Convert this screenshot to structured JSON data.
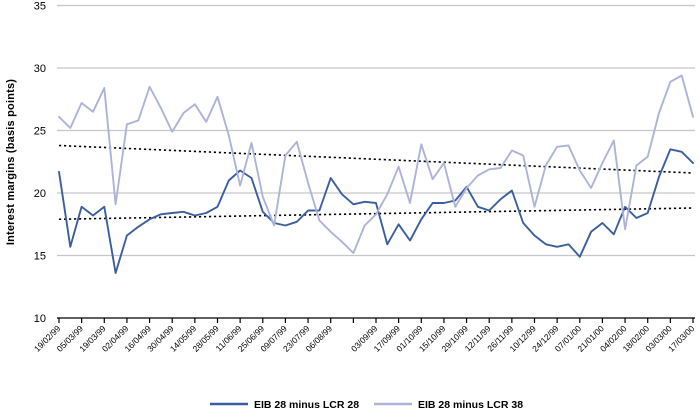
{
  "chart_data": {
    "type": "line",
    "title": "",
    "xlabel": "",
    "ylabel": "Interest margins (basis points)",
    "ylim": [
      10,
      35
    ],
    "yticks": [
      10,
      15,
      20,
      25,
      30,
      35
    ],
    "grid": "horizontal",
    "legend_position": "bottom",
    "x_frequency": "weekly points, biweekly date ticks",
    "x_tick_labels": [
      "19/02/99",
      "05/03/99",
      "19/03/99",
      "02/04/99",
      "16/04/99",
      "30/04/99",
      "14/05/99",
      "28/05/99",
      "11/06/99",
      "25/06/99",
      "09/07/99",
      "23/07/99",
      "06/08/99",
      "",
      "03/09/99",
      "17/09/99",
      "01/10/99",
      "15/10/99",
      "29/10/99",
      "12/11/99",
      "26/11/99",
      "10/12/99",
      "24/12/99",
      "07/01/00",
      "21/01/00",
      "04/02/00",
      "18/02/00",
      "03/03/00",
      "17/03/00"
    ],
    "series": [
      {
        "name": "EIB 28 minus LCR 28",
        "color": "#3b5f9e",
        "values": [
          21.7,
          15.7,
          18.9,
          18.2,
          18.9,
          13.6,
          16.6,
          17.3,
          17.9,
          18.3,
          18.4,
          18.5,
          18.2,
          18.4,
          18.9,
          21.0,
          21.8,
          21.2,
          18.5,
          17.6,
          17.4,
          17.7,
          18.6,
          18.6,
          21.2,
          19.9,
          19.1,
          19.3,
          19.2,
          15.9,
          17.5,
          16.2,
          17.9,
          19.2,
          19.2,
          19.4,
          20.5,
          18.9,
          18.6,
          19.5,
          20.2,
          17.6,
          16.6,
          15.9,
          15.7,
          15.9,
          14.9,
          16.9,
          17.6,
          16.7,
          18.9,
          18.0,
          18.4,
          21.3,
          23.5,
          23.3,
          22.4
        ]
      },
      {
        "name": "EIB 28 minus LCR 38",
        "color": "#aeb3d8",
        "values": [
          26.1,
          25.2,
          27.2,
          26.5,
          28.4,
          19.1,
          25.5,
          25.8,
          28.5,
          26.8,
          24.9,
          26.4,
          27.1,
          25.7,
          27.7,
          24.6,
          20.6,
          24.0,
          19.7,
          17.4,
          23.0,
          24.1,
          20.8,
          17.8,
          16.9,
          16.1,
          15.2,
          17.4,
          18.3,
          19.9,
          22.1,
          19.2,
          23.9,
          21.1,
          22.4,
          18.9,
          20.4,
          21.4,
          21.9,
          22.0,
          23.4,
          23.0,
          18.9,
          22.2,
          23.7,
          23.8,
          21.8,
          20.4,
          22.4,
          24.2,
          17.1,
          22.2,
          22.9,
          26.4,
          28.9,
          29.4,
          26.1
        ]
      }
    ],
    "trend_lines": [
      {
        "for": "EIB 28 minus LCR 28",
        "style": "dotted",
        "color": "#000000",
        "start_value": 17.9,
        "end_value": 18.8
      },
      {
        "for": "EIB 28 minus LCR 38",
        "style": "dotted",
        "color": "#000000",
        "start_value": 23.8,
        "end_value": 21.6
      }
    ]
  },
  "colors": {
    "background": "#ffffff",
    "gridline": "#c6c6c6",
    "axis": "#000000",
    "text": "#000000"
  }
}
